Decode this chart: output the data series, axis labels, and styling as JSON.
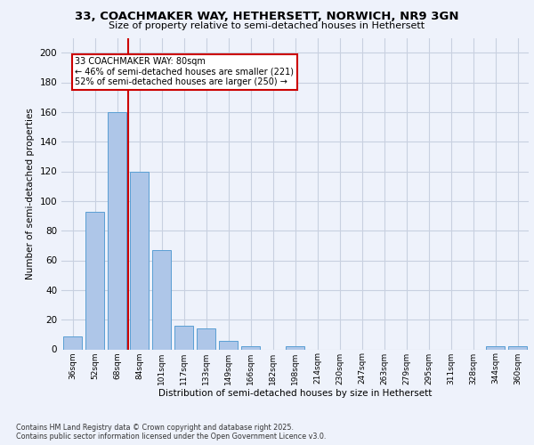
{
  "title_line1": "33, COACHMAKER WAY, HETHERSETT, NORWICH, NR9 3GN",
  "title_line2": "Size of property relative to semi-detached houses in Hethersett",
  "xlabel": "Distribution of semi-detached houses by size in Hethersett",
  "ylabel": "Number of semi-detached properties",
  "categories": [
    "36sqm",
    "52sqm",
    "68sqm",
    "84sqm",
    "101sqm",
    "117sqm",
    "133sqm",
    "149sqm",
    "166sqm",
    "182sqm",
    "198sqm",
    "214sqm",
    "230sqm",
    "247sqm",
    "263sqm",
    "279sqm",
    "295sqm",
    "311sqm",
    "328sqm",
    "344sqm",
    "360sqm"
  ],
  "values": [
    9,
    93,
    160,
    120,
    67,
    16,
    14,
    6,
    2,
    0,
    2,
    0,
    0,
    0,
    0,
    0,
    0,
    0,
    0,
    2,
    2
  ],
  "bar_color": "#aec6e8",
  "bar_edge_color": "#5a9fd4",
  "vline_x_pos": 2.5,
  "vline_color": "#cc0000",
  "annotation_title": "33 COACHMAKER WAY: 80sqm",
  "annotation_line1": "← 46% of semi-detached houses are smaller (221)",
  "annotation_line2": "52% of semi-detached houses are larger (250) →",
  "annotation_box_color": "#ffffff",
  "annotation_box_edge": "#cc0000",
  "ylim": [
    0,
    210
  ],
  "yticks": [
    0,
    20,
    40,
    60,
    80,
    100,
    120,
    140,
    160,
    180,
    200
  ],
  "footer_line1": "Contains HM Land Registry data © Crown copyright and database right 2025.",
  "footer_line2": "Contains public sector information licensed under the Open Government Licence v3.0.",
  "background_color": "#eef2fb",
  "grid_color": "#c8d0e0"
}
